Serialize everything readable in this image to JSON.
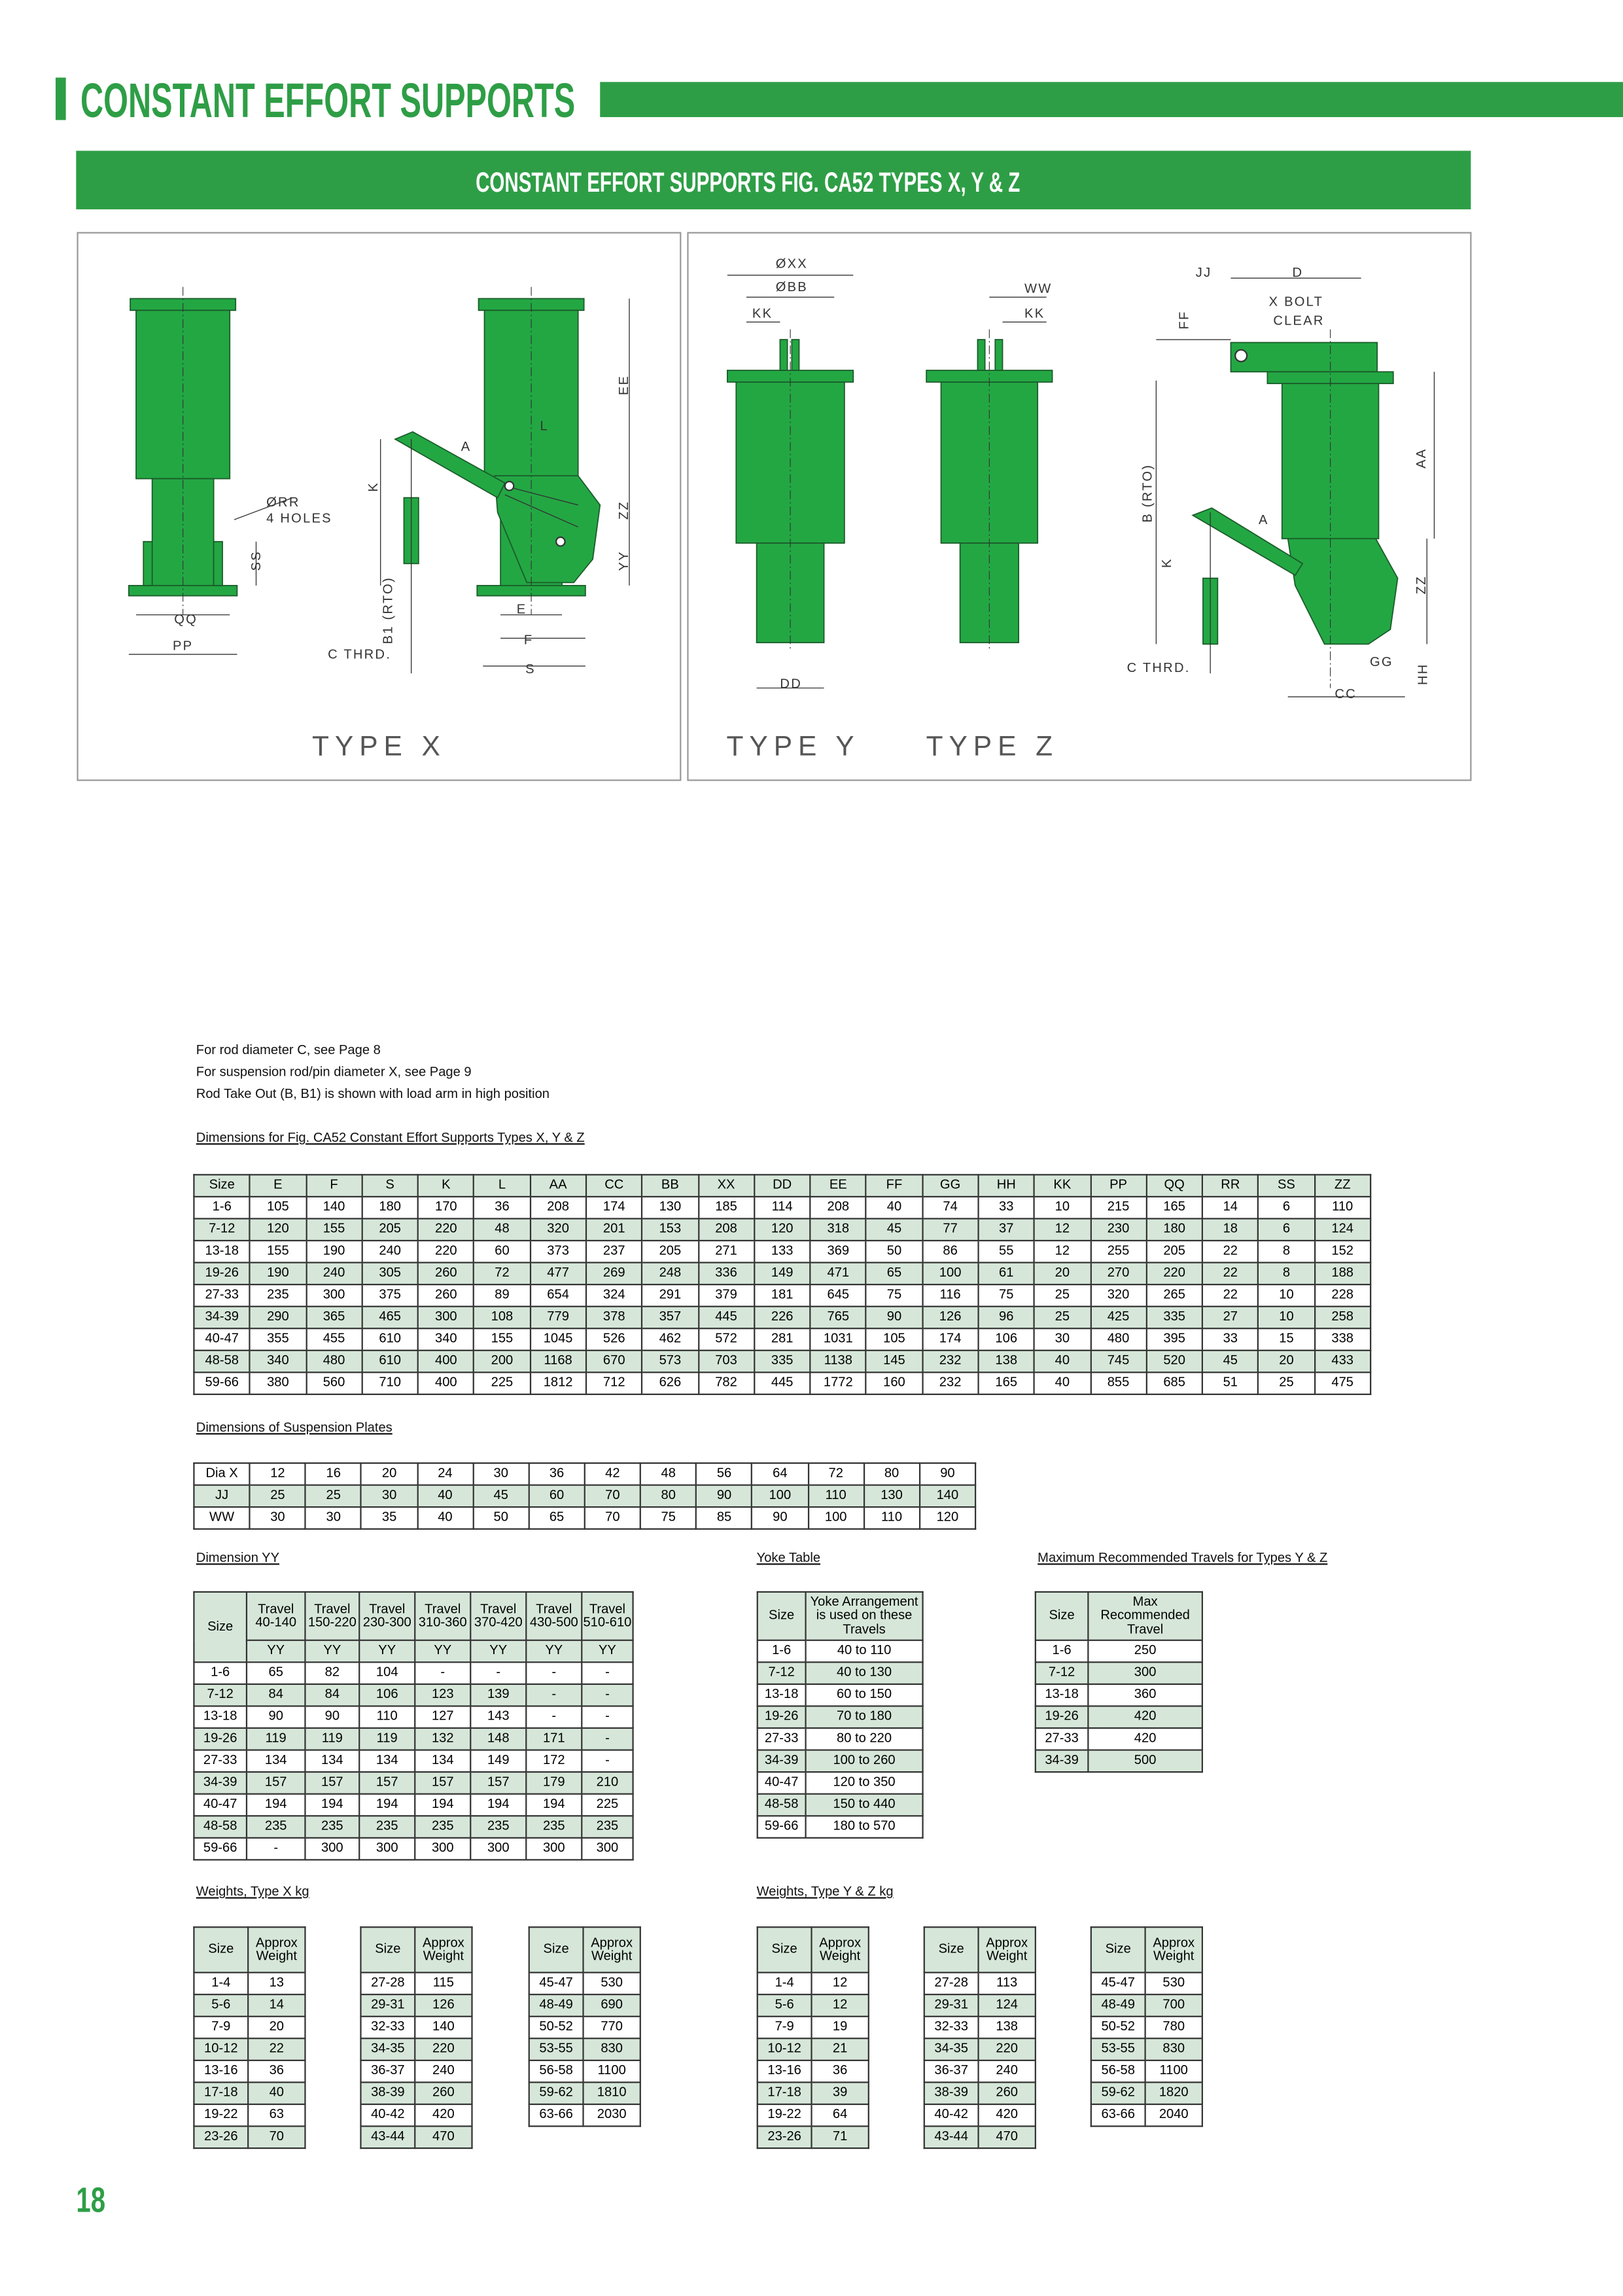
{
  "header": {
    "title": "CONSTANT EFFORT SUPPORTS",
    "subtitle": "CONSTANT EFFORT SUPPORTS FIG. CA52 TYPES X, Y & Z"
  },
  "drawing": {
    "types": [
      "TYPE X",
      "TYPE Y",
      "TYPE Z"
    ],
    "labels": [
      "ØRR",
      "4 HOLES",
      "SS",
      "QQ",
      "PP",
      "C THRD.",
      "E",
      "F",
      "S",
      "EE",
      "ZZ",
      "YY",
      "K",
      "A",
      "L",
      "B1 (RTO)",
      "ØXX",
      "ØBB",
      "KK",
      "DD",
      "WW",
      "KK",
      "JJ",
      "D",
      "X BOLT",
      "CLEAR",
      "FF",
      "AA",
      "B (RTO)",
      "ZZ",
      "GG",
      "HH",
      "CC",
      "C THRD.",
      "K",
      "A"
    ]
  },
  "notes": [
    "For rod diameter C, see Page  8",
    "For suspension rod/pin diameter X, see Page 9",
    "Rod Take Out (B, B1) is shown with load arm in high position"
  ],
  "dimensions": {
    "caption": "Dimensions for Fig. CA52 Constant Effort Supports Types X, Y & Z",
    "header": [
      "Size",
      "E",
      "F",
      "S",
      "K",
      "L",
      "AA",
      "CC",
      "BB",
      "XX",
      "DD",
      "EE",
      "FF",
      "GG",
      "HH",
      "KK",
      "PP",
      "QQ",
      "RR",
      "SS",
      "ZZ"
    ],
    "rows": [
      [
        "1-6",
        "105",
        "140",
        "180",
        "170",
        "36",
        "208",
        "174",
        "130",
        "185",
        "114",
        "208",
        "40",
        "74",
        "33",
        "10",
        "215",
        "165",
        "14",
        "6",
        "110"
      ],
      [
        "7-12",
        "120",
        "155",
        "205",
        "220",
        "48",
        "320",
        "201",
        "153",
        "208",
        "120",
        "318",
        "45",
        "77",
        "37",
        "12",
        "230",
        "180",
        "18",
        "6",
        "124"
      ],
      [
        "13-18",
        "155",
        "190",
        "240",
        "220",
        "60",
        "373",
        "237",
        "205",
        "271",
        "133",
        "369",
        "50",
        "86",
        "55",
        "12",
        "255",
        "205",
        "22",
        "8",
        "152"
      ],
      [
        "19-26",
        "190",
        "240",
        "305",
        "260",
        "72",
        "477",
        "269",
        "248",
        "336",
        "149",
        "471",
        "65",
        "100",
        "61",
        "20",
        "270",
        "220",
        "22",
        "8",
        "188"
      ],
      [
        "27-33",
        "235",
        "300",
        "375",
        "260",
        "89",
        "654",
        "324",
        "291",
        "379",
        "181",
        "645",
        "75",
        "116",
        "75",
        "25",
        "320",
        "265",
        "22",
        "10",
        "228"
      ],
      [
        "34-39",
        "290",
        "365",
        "465",
        "300",
        "108",
        "779",
        "378",
        "357",
        "445",
        "226",
        "765",
        "90",
        "126",
        "96",
        "25",
        "425",
        "335",
        "27",
        "10",
        "258"
      ],
      [
        "40-47",
        "355",
        "455",
        "610",
        "340",
        "155",
        "1045",
        "526",
        "462",
        "572",
        "281",
        "1031",
        "105",
        "174",
        "106",
        "30",
        "480",
        "395",
        "33",
        "15",
        "338"
      ],
      [
        "48-58",
        "340",
        "480",
        "610",
        "400",
        "200",
        "1168",
        "670",
        "573",
        "703",
        "335",
        "1138",
        "145",
        "232",
        "138",
        "40",
        "745",
        "520",
        "45",
        "20",
        "433"
      ],
      [
        "59-66",
        "380",
        "560",
        "710",
        "400",
        "225",
        "1812",
        "712",
        "626",
        "782",
        "445",
        "1772",
        "160",
        "232",
        "165",
        "40",
        "855",
        "685",
        "51",
        "25",
        "475"
      ]
    ]
  },
  "plates": {
    "caption": "Dimensions of Suspension Plates",
    "rows": [
      [
        "Dia X",
        "12",
        "16",
        "20",
        "24",
        "30",
        "36",
        "42",
        "48",
        "56",
        "64",
        "72",
        "80",
        "90"
      ],
      [
        "JJ",
        "25",
        "25",
        "30",
        "40",
        "45",
        "60",
        "70",
        "80",
        "90",
        "100",
        "110",
        "130",
        "140"
      ],
      [
        "WW",
        "30",
        "30",
        "35",
        "40",
        "50",
        "65",
        "70",
        "75",
        "85",
        "90",
        "100",
        "110",
        "120"
      ]
    ]
  },
  "yy": {
    "caption": "Dimension YY",
    "header": [
      "Size",
      "Travel 40-140",
      "Travel 150-220",
      "Travel 230-300",
      "Travel 310-360",
      "Travel 370-420",
      "Travel 430-500",
      "Travel 510-610"
    ],
    "subheader": [
      "YY",
      "YY",
      "YY",
      "YY",
      "YY",
      "YY",
      "YY"
    ],
    "rows": [
      [
        "1-6",
        "65",
        "82",
        "104",
        "-",
        "-",
        "-",
        "-"
      ],
      [
        "7-12",
        "84",
        "84",
        "106",
        "123",
        "139",
        "-",
        "-"
      ],
      [
        "13-18",
        "90",
        "90",
        "110",
        "127",
        "143",
        "-",
        "-"
      ],
      [
        "19-26",
        "119",
        "119",
        "119",
        "132",
        "148",
        "171",
        "-"
      ],
      [
        "27-33",
        "134",
        "134",
        "134",
        "134",
        "149",
        "172",
        "-"
      ],
      [
        "34-39",
        "157",
        "157",
        "157",
        "157",
        "157",
        "179",
        "210"
      ],
      [
        "40-47",
        "194",
        "194",
        "194",
        "194",
        "194",
        "194",
        "225"
      ],
      [
        "48-58",
        "235",
        "235",
        "235",
        "235",
        "235",
        "235",
        "235"
      ],
      [
        "59-66",
        "-",
        "300",
        "300",
        "300",
        "300",
        "300",
        "300"
      ]
    ]
  },
  "yoke": {
    "caption": "Yoke Table",
    "header": [
      "Size",
      "Yoke Arrangement is used on these Travels"
    ],
    "rows": [
      [
        "1-6",
        "40 to 110"
      ],
      [
        "7-12",
        "40 to 130"
      ],
      [
        "13-18",
        "60 to 150"
      ],
      [
        "19-26",
        "70 to 180"
      ],
      [
        "27-33",
        "80 to 220"
      ],
      [
        "34-39",
        "100 to 260"
      ],
      [
        "40-47",
        "120 to 350"
      ],
      [
        "48-58",
        "150 to 440"
      ],
      [
        "59-66",
        "180 to 570"
      ]
    ]
  },
  "max_travel": {
    "caption": "Maximum Recommended Travels for Types Y & Z",
    "header": [
      "Size",
      "Max Recommended Travel"
    ],
    "rows": [
      [
        "1-6",
        "250"
      ],
      [
        "7-12",
        "300"
      ],
      [
        "13-18",
        "360"
      ],
      [
        "19-26",
        "420"
      ],
      [
        "27-33",
        "420"
      ],
      [
        "34-39",
        "500"
      ]
    ]
  },
  "weights_x": {
    "caption": "Weights, Type X kg",
    "tables": [
      {
        "header": [
          "Size",
          "Approx Weight"
        ],
        "rows": [
          [
            "1-4",
            "13"
          ],
          [
            "5-6",
            "14"
          ],
          [
            "7-9",
            "20"
          ],
          [
            "10-12",
            "22"
          ],
          [
            "13-16",
            "36"
          ],
          [
            "17-18",
            "40"
          ],
          [
            "19-22",
            "63"
          ],
          [
            "23-26",
            "70"
          ]
        ]
      },
      {
        "header": [
          "Size",
          "Approx Weight"
        ],
        "rows": [
          [
            "27-28",
            "115"
          ],
          [
            "29-31",
            "126"
          ],
          [
            "32-33",
            "140"
          ],
          [
            "34-35",
            "220"
          ],
          [
            "36-37",
            "240"
          ],
          [
            "38-39",
            "260"
          ],
          [
            "40-42",
            "420"
          ],
          [
            "43-44",
            "470"
          ]
        ]
      },
      {
        "header": [
          "Size",
          "Approx Weight"
        ],
        "rows": [
          [
            "45-47",
            "530"
          ],
          [
            "48-49",
            "690"
          ],
          [
            "50-52",
            "770"
          ],
          [
            "53-55",
            "830"
          ],
          [
            "56-58",
            "1100"
          ],
          [
            "59-62",
            "1810"
          ],
          [
            "63-66",
            "2030"
          ]
        ]
      }
    ]
  },
  "weights_yz": {
    "caption": "Weights, Type Y & Z kg",
    "tables": [
      {
        "header": [
          "Size",
          "Approx Weight"
        ],
        "rows": [
          [
            "1-4",
            "12"
          ],
          [
            "5-6",
            "12"
          ],
          [
            "7-9",
            "19"
          ],
          [
            "10-12",
            "21"
          ],
          [
            "13-16",
            "36"
          ],
          [
            "17-18",
            "39"
          ],
          [
            "19-22",
            "64"
          ],
          [
            "23-26",
            "71"
          ]
        ]
      },
      {
        "header": [
          "Size",
          "Approx Weight"
        ],
        "rows": [
          [
            "27-28",
            "113"
          ],
          [
            "29-31",
            "124"
          ],
          [
            "32-33",
            "138"
          ],
          [
            "34-35",
            "220"
          ],
          [
            "36-37",
            "240"
          ],
          [
            "38-39",
            "260"
          ],
          [
            "40-42",
            "420"
          ],
          [
            "43-44",
            "470"
          ]
        ]
      },
      {
        "header": [
          "Size",
          "Approx Weight"
        ],
        "rows": [
          [
            "45-47",
            "530"
          ],
          [
            "48-49",
            "700"
          ],
          [
            "50-52",
            "780"
          ],
          [
            "53-55",
            "830"
          ],
          [
            "56-58",
            "1100"
          ],
          [
            "59-62",
            "1820"
          ],
          [
            "63-66",
            "2040"
          ]
        ]
      }
    ]
  },
  "page_number": "18"
}
